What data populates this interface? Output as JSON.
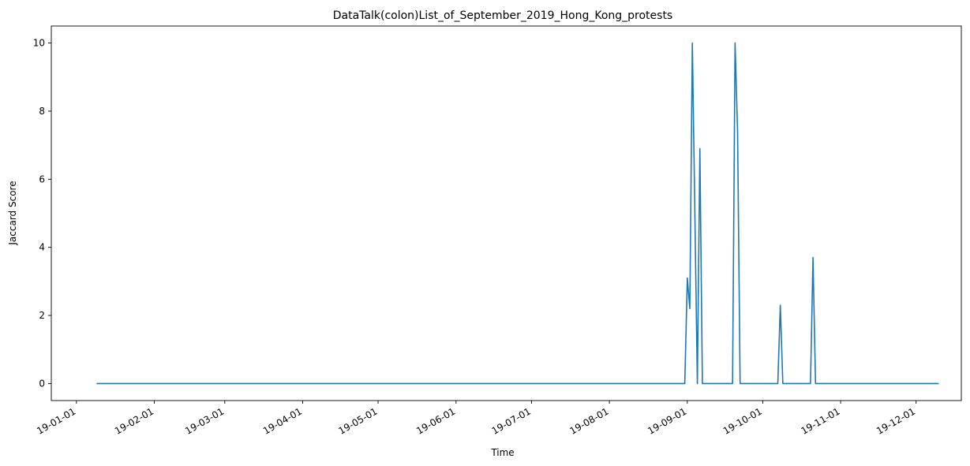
{
  "chart_data": {
    "type": "line",
    "title": "DataTalk(colon)List_of_September_2019_Hong_Kong_protests",
    "xlabel": "Time",
    "ylabel": "Jaccard Score",
    "x_axis_type": "date",
    "xlim": [
      "2018-12-22",
      "2019-12-19"
    ],
    "ylim": [
      -0.5,
      10.5
    ],
    "x_ticks": [
      "2019-01-01",
      "2019-02-01",
      "2019-03-01",
      "2019-04-01",
      "2019-05-01",
      "2019-06-01",
      "2019-07-01",
      "2019-08-01",
      "2019-09-01",
      "2019-10-01",
      "2019-11-01",
      "2019-12-01"
    ],
    "x_tick_labels": [
      "19-01-01",
      "19-02-01",
      "19-03-01",
      "19-04-01",
      "19-05-01",
      "19-06-01",
      "19-07-01",
      "19-08-01",
      "19-09-01",
      "19-10-01",
      "19-11-01",
      "19-12-01"
    ],
    "y_ticks": [
      0,
      2,
      4,
      6,
      8,
      10
    ],
    "y_tick_labels": [
      "0",
      "2",
      "4",
      "6",
      "8",
      "10"
    ],
    "grid": false,
    "line_color": "#1f77b4",
    "series": [
      {
        "x": [
          "2019-01-09",
          "2019-08-31",
          "2019-09-01",
          "2019-09-02",
          "2019-09-03",
          "2019-09-04",
          "2019-09-05",
          "2019-09-06",
          "2019-09-07",
          "2019-09-08",
          "2019-09-09",
          "2019-09-10",
          "2019-09-19",
          "2019-09-20",
          "2019-09-21",
          "2019-09-22",
          "2019-09-23",
          "2019-10-07",
          "2019-10-08",
          "2019-10-09",
          "2019-10-20",
          "2019-10-21",
          "2019-10-22",
          "2019-12-10"
        ],
        "y": [
          0,
          0,
          3.1,
          2.2,
          10,
          5.0,
          0,
          6.9,
          0,
          0,
          0,
          0,
          0,
          10,
          7.4,
          0,
          0,
          0,
          2.3,
          0,
          0,
          3.7,
          0,
          0
        ]
      }
    ]
  }
}
